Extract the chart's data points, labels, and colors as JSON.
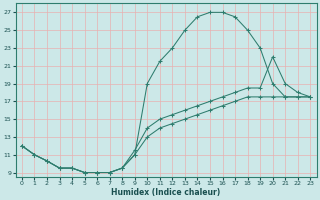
{
  "xlabel": "Humidex (Indice chaleur)",
  "bg_color": "#cce8e8",
  "grid_color": "#e8b0b0",
  "line_color": "#2e7d6e",
  "xlim": [
    -0.5,
    23.5
  ],
  "ylim": [
    8.5,
    28.0
  ],
  "xticks": [
    0,
    1,
    2,
    3,
    4,
    5,
    6,
    7,
    8,
    9,
    10,
    11,
    12,
    13,
    14,
    15,
    16,
    17,
    18,
    19,
    20,
    21,
    22,
    23
  ],
  "yticks": [
    9,
    11,
    13,
    15,
    17,
    19,
    21,
    23,
    25,
    27
  ],
  "curve1_x": [
    0,
    1,
    2,
    3,
    4,
    5,
    6,
    7,
    8,
    9,
    10,
    11,
    12,
    13,
    14,
    15,
    16,
    17,
    18,
    19,
    20,
    21,
    22,
    23
  ],
  "curve1_y": [
    12.0,
    11.0,
    10.3,
    9.5,
    9.5,
    9.0,
    9.0,
    9.0,
    9.5,
    11.0,
    19.0,
    21.5,
    23.0,
    25.0,
    26.5,
    27.0,
    27.0,
    26.5,
    25.0,
    23.0,
    19.0,
    17.5,
    17.5,
    17.5
  ],
  "curve2_x": [
    0,
    1,
    2,
    3,
    4,
    5,
    6,
    7,
    8,
    9,
    10,
    11,
    12,
    13,
    14,
    15,
    16,
    17,
    18,
    19,
    20,
    21,
    22,
    23
  ],
  "curve2_y": [
    12.0,
    11.0,
    10.3,
    9.5,
    9.5,
    9.0,
    9.0,
    9.0,
    9.5,
    11.5,
    14.0,
    15.0,
    15.5,
    16.0,
    16.5,
    17.0,
    17.5,
    18.0,
    18.5,
    18.5,
    22.0,
    19.0,
    18.0,
    17.5
  ],
  "curve3_x": [
    0,
    1,
    2,
    3,
    4,
    5,
    6,
    7,
    8,
    9,
    10,
    11,
    12,
    13,
    14,
    15,
    16,
    17,
    18,
    19,
    20,
    21,
    22,
    23
  ],
  "curve3_y": [
    12.0,
    11.0,
    10.3,
    9.5,
    9.5,
    9.0,
    9.0,
    9.0,
    9.5,
    11.0,
    13.0,
    14.0,
    14.5,
    15.0,
    15.5,
    16.0,
    16.5,
    17.0,
    17.5,
    17.5,
    17.5,
    17.5,
    17.5,
    17.5
  ]
}
